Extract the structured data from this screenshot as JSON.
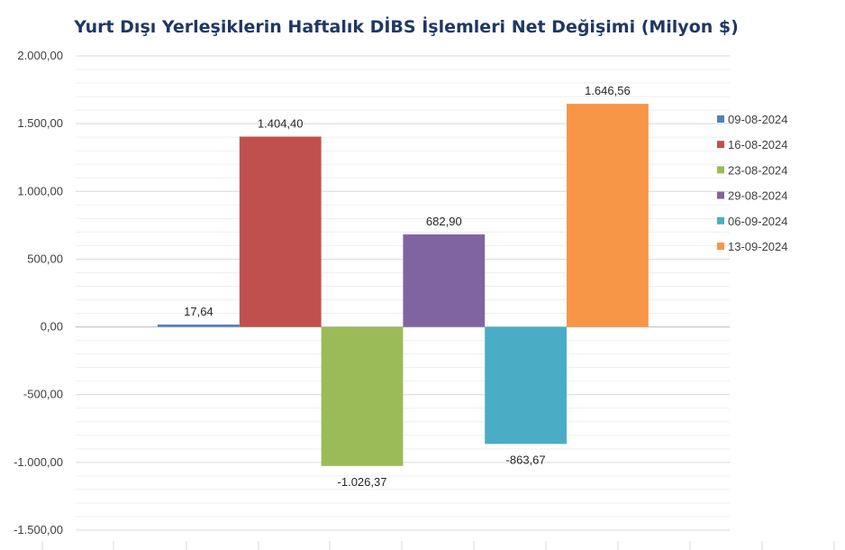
{
  "chart_data": {
    "type": "bar",
    "title": "Yurt Dışı Yerleşiklerin Haftalık DİBS İşlemleri Net Değişimi (Milyon $)",
    "xlabel": "",
    "ylabel": "",
    "ylim": [
      -1500,
      2000
    ],
    "yticks": [
      2000,
      1500,
      1000,
      500,
      0,
      -500,
      -1000,
      -1500
    ],
    "ytick_labels": [
      "2.000,00",
      "1.500,00",
      "1.000,00",
      "500,00",
      "0,00",
      "-500,00",
      "-1.000,00",
      "-1.500,00"
    ],
    "grid": true,
    "legend_position": "right",
    "series": [
      {
        "name": "09-08-2024",
        "value": 17.64,
        "label": "17,64",
        "color": "#4f81bd"
      },
      {
        "name": "16-08-2024",
        "value": 1404.4,
        "label": "1.404,40",
        "color": "#c0504d"
      },
      {
        "name": "23-08-2024",
        "value": -1026.37,
        "label": "-1.026,37",
        "color": "#9bbb59"
      },
      {
        "name": "29-08-2024",
        "value": 682.9,
        "label": "682,90",
        "color": "#8064a2"
      },
      {
        "name": "06-09-2024",
        "value": -863.67,
        "label": "-863,67",
        "color": "#4bacc6"
      },
      {
        "name": "13-09-2024",
        "value": 1646.56,
        "label": "1.646,56",
        "color": "#f79646"
      }
    ]
  }
}
